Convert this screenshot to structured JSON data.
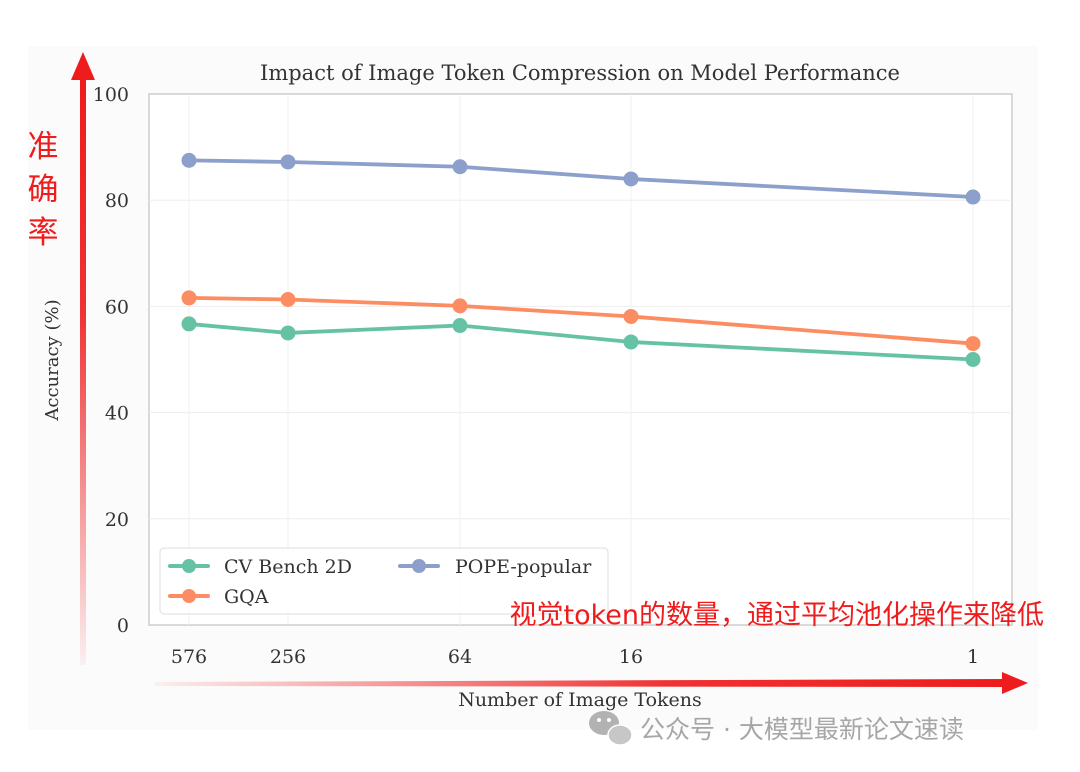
{
  "chart_data": {
    "type": "line",
    "title": "Impact of Image Token Compression on Model Performance",
    "xlabel": "Number of Image Tokens",
    "ylabel": "Accuracy (%)",
    "categories": [
      "576",
      "256",
      "64",
      "16",
      "1"
    ],
    "ylim": [
      0,
      100
    ],
    "yticks": [
      0,
      20,
      40,
      60,
      80,
      100
    ],
    "grid": true,
    "legend": "lower-left",
    "series": [
      {
        "name": "CV Bench 2D",
        "color": "#66c2a5",
        "values": [
          56.7,
          55.0,
          56.4,
          53.3,
          50.0
        ]
      },
      {
        "name": "GQA",
        "color": "#fc8d62",
        "values": [
          61.6,
          61.3,
          60.1,
          58.1,
          53.0
        ]
      },
      {
        "name": "POPE-popular",
        "color": "#8da0cb",
        "values": [
          87.5,
          87.2,
          86.3,
          84.0,
          80.6
        ]
      }
    ]
  },
  "annotations": {
    "y_arrow_label": "准确率",
    "x_arrow_label": "视觉token的数量，通过平均池化操作来降低",
    "arrow_color": "#ee1c1c"
  },
  "watermark": {
    "text": "公众号 · 大模型最新论文速读",
    "icon": "wechat-icon"
  }
}
